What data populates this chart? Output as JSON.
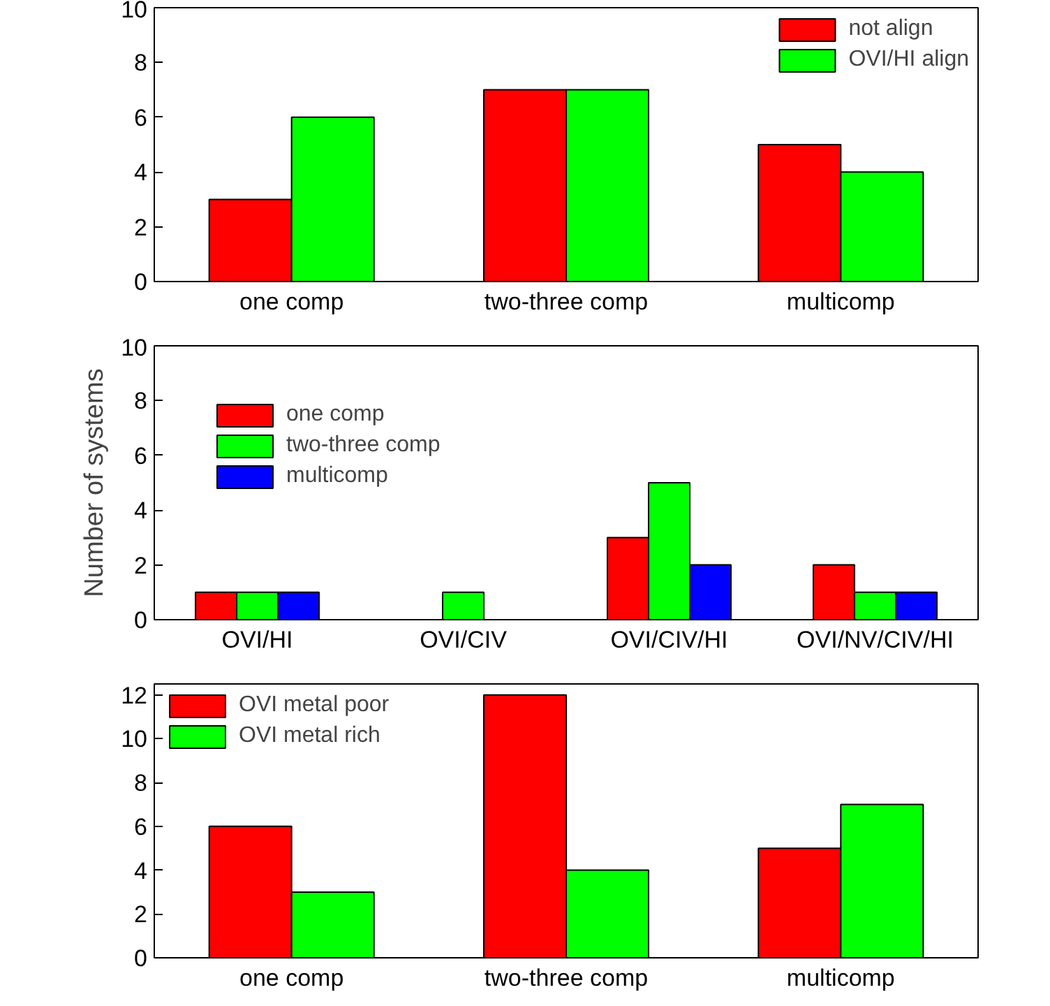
{
  "chart_data": [
    {
      "type": "bar",
      "categories": [
        "one comp",
        "two-three comp",
        "multicomp"
      ],
      "ylim": [
        0,
        10
      ],
      "yticks": [
        0,
        2,
        4,
        6,
        8,
        10
      ],
      "legend": "top right",
      "grid": false,
      "series": [
        {
          "name": "not align",
          "color": "#ff0000",
          "values": [
            3,
            7,
            5
          ]
        },
        {
          "name": "OVI/HI align",
          "color": "#00ff00",
          "values": [
            6,
            7,
            4
          ]
        }
      ]
    },
    {
      "type": "bar",
      "categories": [
        "OVI/HI",
        "OVI/CIV",
        "OVI/CIV/HI",
        "OVI/NV/CIV/HI"
      ],
      "ylabel": "Number of systems",
      "ylim": [
        0,
        10
      ],
      "yticks": [
        0,
        2,
        4,
        6,
        8,
        10
      ],
      "legend": "top left",
      "grid": false,
      "series": [
        {
          "name": "one comp",
          "color": "#ff0000",
          "values": [
            1,
            0,
            3,
            2
          ]
        },
        {
          "name": "two-three comp",
          "color": "#00ff00",
          "values": [
            1,
            1,
            5,
            1
          ]
        },
        {
          "name": "multicomp",
          "color": "#0000ff",
          "values": [
            1,
            0,
            2,
            1
          ]
        }
      ]
    },
    {
      "type": "bar",
      "categories": [
        "one comp",
        "two-three comp",
        "multicomp"
      ],
      "ylim": [
        0,
        12.5
      ],
      "yticks": [
        0,
        2,
        4,
        6,
        8,
        10,
        12
      ],
      "legend": "top left",
      "grid": false,
      "series": [
        {
          "name": "OVI metal poor",
          "color": "#ff0000",
          "values": [
            6,
            12,
            5
          ]
        },
        {
          "name": "OVI metal rich",
          "color": "#00ff00",
          "values": [
            3,
            4,
            7
          ]
        }
      ]
    }
  ]
}
